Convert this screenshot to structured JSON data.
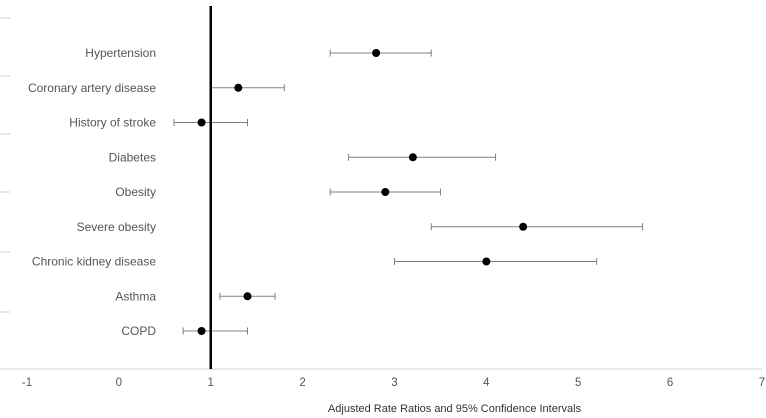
{
  "chart_data": {
    "type": "scatter",
    "subtype": "forest-plot",
    "xlabel": "Adjusted Rate Ratios and 95% Confidence Intervals",
    "xlim": [
      -1,
      7
    ],
    "xticks": [
      -1,
      0,
      1,
      2,
      3,
      4,
      5,
      6,
      7
    ],
    "reference_line": 1,
    "grid": false,
    "categories": [
      "Hypertension",
      "Coronary artery disease",
      "History of stroke",
      "Diabetes",
      "Obesity",
      "Severe obesity",
      "Chronic kidney disease",
      "Asthma",
      "COPD"
    ],
    "estimates": [
      2.8,
      1.3,
      0.9,
      3.2,
      2.9,
      4.4,
      4.0,
      1.4,
      0.9
    ],
    "ci_lower": [
      2.3,
      1.0,
      0.6,
      2.5,
      2.3,
      3.4,
      3.0,
      1.1,
      0.7
    ],
    "ci_upper": [
      3.4,
      1.8,
      1.4,
      4.1,
      3.5,
      5.7,
      5.2,
      1.7,
      1.4
    ],
    "colors": {
      "point": "#000000",
      "ci": "#808080",
      "reference": "#000000",
      "axis": "#d0d0d0"
    }
  }
}
